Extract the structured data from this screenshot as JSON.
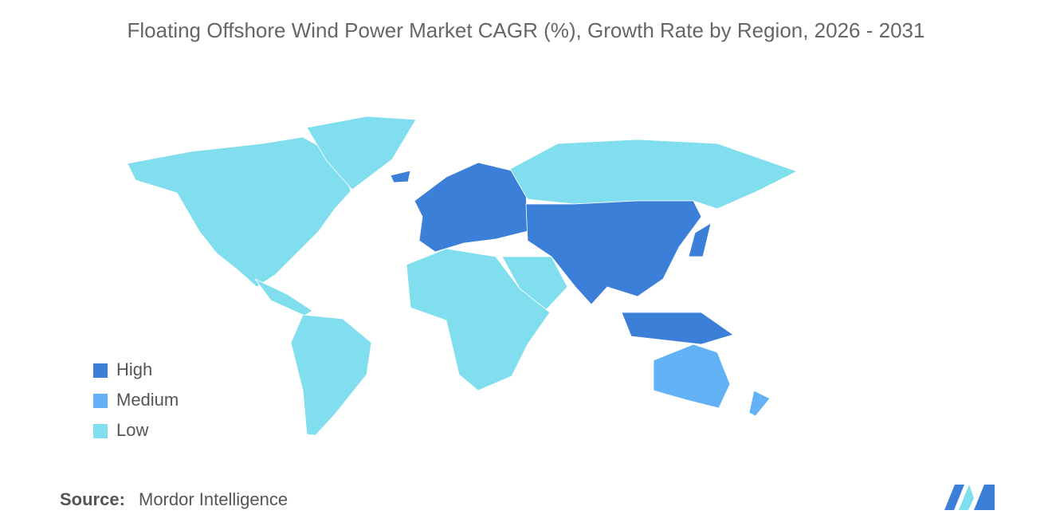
{
  "title": "Floating Offshore Wind Power Market CAGR (%), Growth Rate by Region, 2026 - 2031",
  "legend": [
    {
      "label": "High",
      "color": "#3c7fd9"
    },
    {
      "label": "Medium",
      "color": "#63b2f6"
    },
    {
      "label": "Low",
      "color": "#80deee"
    }
  ],
  "source": {
    "label": "Source:",
    "text": "Mordor Intelligence"
  }
}
